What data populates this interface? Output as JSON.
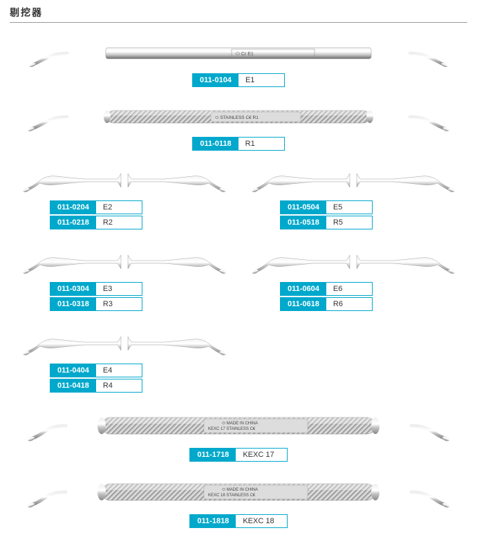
{
  "title": "剔挖器",
  "colors": {
    "accent": "#00a8cc",
    "metal_light": "#f4f4f4",
    "metal_mid": "#c5c5c5",
    "metal_dark": "#8a8a8a",
    "metal_shadow": "#6b6b6b"
  },
  "items": [
    {
      "type": "full_flat",
      "engraving": "⬭  Cr    E1",
      "labels": [
        {
          "sku": "011-0104",
          "desc": "E1"
        }
      ]
    },
    {
      "type": "full_knurl",
      "engraving": "⬭   STAINLESS C€   R1",
      "labels": [
        {
          "sku": "011-0118",
          "desc": "R1"
        }
      ]
    },
    {
      "type": "pair_row",
      "left": {
        "labels": [
          {
            "sku": "011-0204",
            "desc": "E2"
          },
          {
            "sku": "011-0218",
            "desc": "R2"
          }
        ]
      },
      "right": {
        "labels": [
          {
            "sku": "011-0504",
            "desc": "E5"
          },
          {
            "sku": "011-0518",
            "desc": "R5"
          }
        ]
      }
    },
    {
      "type": "pair_row",
      "left": {
        "labels": [
          {
            "sku": "011-0304",
            "desc": "E3"
          },
          {
            "sku": "011-0318",
            "desc": "R3"
          }
        ]
      },
      "right": {
        "labels": [
          {
            "sku": "011-0604",
            "desc": "E6"
          },
          {
            "sku": "011-0618",
            "desc": "R6"
          }
        ]
      }
    },
    {
      "type": "pair_row",
      "left": {
        "labels": [
          {
            "sku": "011-0404",
            "desc": "E4"
          },
          {
            "sku": "011-0418",
            "desc": "R4"
          }
        ]
      },
      "right": null
    },
    {
      "type": "full_knurl_thick",
      "engraving_top": "⬭   MADE IN CHINA",
      "engraving_bot": "KEXC 17   STAINLESS C€",
      "labels": [
        {
          "sku": "011-1718",
          "desc": "KEXC 17"
        }
      ]
    },
    {
      "type": "full_knurl_thick",
      "engraving_top": "⬭   MADE IN CHINA",
      "engraving_bot": "KEXC 18   STAINLESS C€",
      "labels": [
        {
          "sku": "011-1818",
          "desc": "KEXC 18"
        }
      ]
    }
  ]
}
